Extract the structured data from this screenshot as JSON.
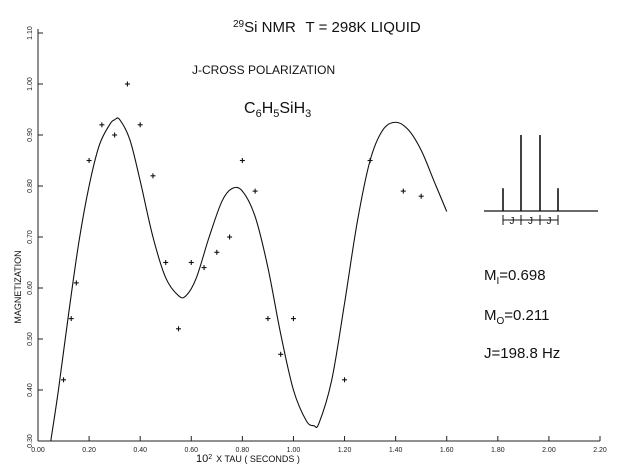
{
  "chart_data": {
    "type": "scatter",
    "title": {
      "isotope_mass": "29",
      "nucleus": "Si NMR",
      "condition": "T = 298K LIQUID"
    },
    "subtitle": "J-CROSS POLARIZATION",
    "compound": {
      "parts": [
        {
          "text": "C",
          "sub": false
        },
        {
          "text": "6",
          "sub": true
        },
        {
          "text": "H",
          "sub": false
        },
        {
          "text": "5",
          "sub": true
        },
        {
          "text": "SiH",
          "sub": false
        },
        {
          "text": "3",
          "sub": true
        }
      ]
    },
    "xlabel": {
      "prefix": "10",
      "exponent": "2",
      "rest": "X  TAU  ( SECONDS )"
    },
    "ylabel": "MAGNETIZATION",
    "xlim": [
      0.0,
      2.2
    ],
    "ylim": [
      0.3,
      1.1
    ],
    "x_ticks": [
      "0.00",
      "0.20",
      "0.40",
      "0.60",
      "0.80",
      "1.00",
      "1.20",
      "1.40",
      "1.60",
      "1.80",
      "2.00",
      "2.20"
    ],
    "y_ticks": [
      "0.30",
      "0.40",
      "0.50",
      "0.60",
      "0.70",
      "0.80",
      "0.90",
      "1.00",
      "1.10"
    ],
    "series": [
      {
        "kind": "points",
        "marker": "+",
        "points": [
          [
            0.1,
            0.42
          ],
          [
            0.13,
            0.54
          ],
          [
            0.15,
            0.61
          ],
          [
            0.2,
            0.85
          ],
          [
            0.25,
            0.92
          ],
          [
            0.3,
            0.9
          ],
          [
            0.35,
            1.0
          ],
          [
            0.4,
            0.92
          ],
          [
            0.45,
            0.82
          ],
          [
            0.5,
            0.65
          ],
          [
            0.55,
            0.52
          ],
          [
            0.6,
            0.65
          ],
          [
            0.65,
            0.64
          ],
          [
            0.7,
            0.67
          ],
          [
            0.75,
            0.7
          ],
          [
            0.8,
            0.85
          ],
          [
            0.85,
            0.79
          ],
          [
            0.9,
            0.54
          ],
          [
            0.95,
            0.47
          ],
          [
            1.0,
            0.54
          ],
          [
            1.2,
            0.42
          ],
          [
            1.3,
            0.85
          ],
          [
            1.43,
            0.79
          ],
          [
            1.5,
            0.78
          ]
        ]
      },
      {
        "kind": "line",
        "points": [
          [
            0.05,
            0.3
          ],
          [
            0.08,
            0.4
          ],
          [
            0.12,
            0.55
          ],
          [
            0.16,
            0.69
          ],
          [
            0.2,
            0.8
          ],
          [
            0.24,
            0.88
          ],
          [
            0.28,
            0.92
          ],
          [
            0.3,
            0.93
          ],
          [
            0.32,
            0.93
          ],
          [
            0.36,
            0.89
          ],
          [
            0.4,
            0.81
          ],
          [
            0.45,
            0.7
          ],
          [
            0.5,
            0.62
          ],
          [
            0.55,
            0.585
          ],
          [
            0.58,
            0.585
          ],
          [
            0.62,
            0.62
          ],
          [
            0.67,
            0.7
          ],
          [
            0.72,
            0.77
          ],
          [
            0.76,
            0.795
          ],
          [
            0.8,
            0.79
          ],
          [
            0.85,
            0.74
          ],
          [
            0.9,
            0.64
          ],
          [
            0.95,
            0.51
          ],
          [
            1.0,
            0.4
          ],
          [
            1.05,
            0.34
          ],
          [
            1.08,
            0.33
          ],
          [
            1.1,
            0.335
          ],
          [
            1.15,
            0.42
          ],
          [
            1.2,
            0.57
          ],
          [
            1.25,
            0.73
          ],
          [
            1.3,
            0.85
          ],
          [
            1.35,
            0.91
          ],
          [
            1.4,
            0.925
          ],
          [
            1.45,
            0.91
          ],
          [
            1.5,
            0.87
          ],
          [
            1.55,
            0.81
          ],
          [
            1.6,
            0.75
          ]
        ]
      }
    ],
    "annotations": {
      "spectrum_lines": [
        0.3,
        1.0,
        1.0,
        0.3
      ],
      "spectrum_labels": [
        "J",
        "J",
        "J"
      ],
      "params": [
        {
          "symbol": "M",
          "sub": "I",
          "value": "=0.698"
        },
        {
          "symbol": "M",
          "sub": "O",
          "value": "=0.211"
        },
        {
          "symbol": "J",
          "sub": "",
          "value": "=198.8 Hz"
        }
      ]
    }
  }
}
